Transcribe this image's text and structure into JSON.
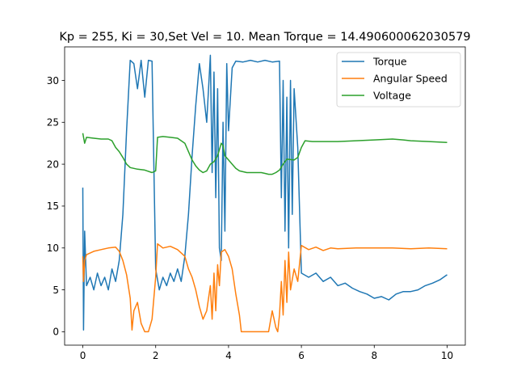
{
  "chart_data": {
    "type": "line",
    "title": "Kp = 255, Ki = 30,Set Vel = 10. Mean Torque = 14.490600062030579",
    "xlabel": "",
    "ylabel": "",
    "xlim": [
      -0.5,
      10.5
    ],
    "ylim": [
      -1.6,
      34.0
    ],
    "xticks": [
      0,
      2,
      4,
      6,
      8,
      10
    ],
    "yticks": [
      0,
      5,
      10,
      15,
      20,
      25,
      30
    ],
    "grid": false,
    "legend_position": "top-right",
    "series": [
      {
        "name": "Torque",
        "color": "#1f77b4",
        "points": [
          [
            0,
            17.2
          ],
          [
            0.02,
            0.2
          ],
          [
            0.05,
            12
          ],
          [
            0.1,
            5.5
          ],
          [
            0.2,
            6.5
          ],
          [
            0.3,
            5.0
          ],
          [
            0.4,
            7.0
          ],
          [
            0.5,
            5.5
          ],
          [
            0.6,
            6.5
          ],
          [
            0.7,
            5.0
          ],
          [
            0.8,
            7.5
          ],
          [
            0.9,
            6.0
          ],
          [
            1.0,
            8.5
          ],
          [
            1.1,
            14.0
          ],
          [
            1.2,
            24.0
          ],
          [
            1.3,
            32.4
          ],
          [
            1.4,
            32.0
          ],
          [
            1.5,
            29.0
          ],
          [
            1.6,
            32.4
          ],
          [
            1.7,
            28.0
          ],
          [
            1.8,
            32.4
          ],
          [
            1.9,
            32.3
          ],
          [
            2.0,
            7.5
          ],
          [
            2.1,
            5.0
          ],
          [
            2.2,
            6.5
          ],
          [
            2.3,
            5.5
          ],
          [
            2.4,
            7.0
          ],
          [
            2.5,
            6.0
          ],
          [
            2.6,
            7.5
          ],
          [
            2.7,
            6.0
          ],
          [
            2.8,
            9.0
          ],
          [
            2.9,
            14.0
          ],
          [
            3.0,
            21.0
          ],
          [
            3.1,
            27.0
          ],
          [
            3.2,
            32.0
          ],
          [
            3.3,
            29.0
          ],
          [
            3.4,
            25.0
          ],
          [
            3.5,
            33.0
          ],
          [
            3.55,
            19.0
          ],
          [
            3.6,
            31.0
          ],
          [
            3.65,
            16.0
          ],
          [
            3.7,
            29.0
          ],
          [
            3.75,
            10.0
          ],
          [
            3.8,
            8.5
          ],
          [
            3.85,
            25.0
          ],
          [
            3.9,
            12.0
          ],
          [
            3.95,
            32.0
          ],
          [
            4.0,
            24.0
          ],
          [
            4.1,
            31.5
          ],
          [
            4.2,
            32.3
          ],
          [
            4.4,
            32.2
          ],
          [
            4.6,
            32.4
          ],
          [
            4.8,
            32.2
          ],
          [
            5.0,
            32.4
          ],
          [
            5.2,
            32.2
          ],
          [
            5.4,
            32.3
          ],
          [
            5.45,
            16.0
          ],
          [
            5.5,
            30.0
          ],
          [
            5.55,
            12.0
          ],
          [
            5.6,
            28.0
          ],
          [
            5.65,
            10.0
          ],
          [
            5.7,
            30.0
          ],
          [
            5.75,
            14.0
          ],
          [
            5.8,
            29.0
          ],
          [
            5.9,
            22.0
          ],
          [
            6.0,
            7.0
          ],
          [
            6.2,
            6.5
          ],
          [
            6.4,
            7.0
          ],
          [
            6.6,
            6.0
          ],
          [
            6.8,
            6.5
          ],
          [
            7.0,
            5.5
          ],
          [
            7.2,
            5.8
          ],
          [
            7.4,
            5.2
          ],
          [
            7.6,
            4.8
          ],
          [
            7.8,
            4.5
          ],
          [
            8.0,
            4.0
          ],
          [
            8.2,
            4.2
          ],
          [
            8.4,
            3.8
          ],
          [
            8.6,
            4.5
          ],
          [
            8.8,
            4.8
          ],
          [
            9.0,
            4.8
          ],
          [
            9.2,
            5.0
          ],
          [
            9.4,
            5.5
          ],
          [
            9.6,
            5.8
          ],
          [
            9.8,
            6.2
          ],
          [
            10.0,
            6.8
          ]
        ]
      },
      {
        "name": "Angular Speed",
        "color": "#ff7f0e",
        "points": [
          [
            0,
            9.0
          ],
          [
            0.02,
            6.0
          ],
          [
            0.05,
            8.5
          ],
          [
            0.1,
            9.2
          ],
          [
            0.3,
            9.6
          ],
          [
            0.5,
            9.8
          ],
          [
            0.7,
            10.0
          ],
          [
            0.9,
            10.1
          ],
          [
            1.0,
            9.6
          ],
          [
            1.1,
            8.5
          ],
          [
            1.2,
            6.8
          ],
          [
            1.3,
            4.0
          ],
          [
            1.35,
            0.2
          ],
          [
            1.4,
            2.5
          ],
          [
            1.5,
            3.5
          ],
          [
            1.6,
            1.0
          ],
          [
            1.7,
            0.0
          ],
          [
            1.8,
            0.0
          ],
          [
            1.9,
            1.5
          ],
          [
            2.0,
            6.5
          ],
          [
            2.05,
            10.5
          ],
          [
            2.2,
            10.0
          ],
          [
            2.4,
            10.2
          ],
          [
            2.6,
            9.8
          ],
          [
            2.8,
            9.0
          ],
          [
            2.9,
            7.5
          ],
          [
            3.0,
            6.5
          ],
          [
            3.1,
            5.0
          ],
          [
            3.2,
            3.0
          ],
          [
            3.3,
            1.5
          ],
          [
            3.4,
            2.5
          ],
          [
            3.5,
            5.5
          ],
          [
            3.55,
            1.5
          ],
          [
            3.6,
            7.0
          ],
          [
            3.65,
            2.5
          ],
          [
            3.7,
            8.0
          ],
          [
            3.75,
            5.5
          ],
          [
            3.8,
            9.5
          ],
          [
            3.9,
            9.8
          ],
          [
            4.0,
            9.0
          ],
          [
            4.1,
            7.5
          ],
          [
            4.2,
            4.5
          ],
          [
            4.3,
            2.0
          ],
          [
            4.35,
            0.0
          ],
          [
            4.5,
            0.0
          ],
          [
            4.7,
            0.0
          ],
          [
            4.9,
            0.0
          ],
          [
            5.1,
            0.0
          ],
          [
            5.2,
            2.5
          ],
          [
            5.3,
            0.5
          ],
          [
            5.35,
            0.0
          ],
          [
            5.4,
            2.0
          ],
          [
            5.45,
            6.0
          ],
          [
            5.5,
            2.0
          ],
          [
            5.55,
            8.5
          ],
          [
            5.6,
            3.5
          ],
          [
            5.65,
            9.5
          ],
          [
            5.7,
            5.0
          ],
          [
            5.8,
            7.5
          ],
          [
            5.9,
            6.0
          ],
          [
            6.0,
            10.3
          ],
          [
            6.2,
            9.8
          ],
          [
            6.4,
            10.1
          ],
          [
            6.6,
            9.7
          ],
          [
            6.8,
            10.0
          ],
          [
            7.0,
            9.9
          ],
          [
            7.5,
            10.0
          ],
          [
            8.0,
            10.0
          ],
          [
            8.5,
            10.0
          ],
          [
            9.0,
            9.9
          ],
          [
            9.5,
            10.0
          ],
          [
            10.0,
            9.9
          ]
        ]
      },
      {
        "name": "Voltage",
        "color": "#2ca02c",
        "points": [
          [
            0,
            23.7
          ],
          [
            0.05,
            22.5
          ],
          [
            0.1,
            23.2
          ],
          [
            0.3,
            23.1
          ],
          [
            0.5,
            23.0
          ],
          [
            0.7,
            23.0
          ],
          [
            0.8,
            22.8
          ],
          [
            0.9,
            22.0
          ],
          [
            1.0,
            21.5
          ],
          [
            1.1,
            20.8
          ],
          [
            1.2,
            20.0
          ],
          [
            1.3,
            19.6
          ],
          [
            1.5,
            19.4
          ],
          [
            1.7,
            19.3
          ],
          [
            1.9,
            19.0
          ],
          [
            2.0,
            19.2
          ],
          [
            2.05,
            23.2
          ],
          [
            2.2,
            23.3
          ],
          [
            2.4,
            23.2
          ],
          [
            2.6,
            23.1
          ],
          [
            2.8,
            22.5
          ],
          [
            2.9,
            21.5
          ],
          [
            3.0,
            20.5
          ],
          [
            3.1,
            19.8
          ],
          [
            3.2,
            19.3
          ],
          [
            3.3,
            19.0
          ],
          [
            3.4,
            19.2
          ],
          [
            3.5,
            20.0
          ],
          [
            3.6,
            20.3
          ],
          [
            3.7,
            21.0
          ],
          [
            3.8,
            22.5
          ],
          [
            3.85,
            22.2
          ],
          [
            3.9,
            21.0
          ],
          [
            4.0,
            20.5
          ],
          [
            4.1,
            20.0
          ],
          [
            4.2,
            19.5
          ],
          [
            4.3,
            19.2
          ],
          [
            4.5,
            19.0
          ],
          [
            4.7,
            19.0
          ],
          [
            4.9,
            19.0
          ],
          [
            5.0,
            18.9
          ],
          [
            5.1,
            18.8
          ],
          [
            5.2,
            18.8
          ],
          [
            5.3,
            19.0
          ],
          [
            5.4,
            19.3
          ],
          [
            5.5,
            20.0
          ],
          [
            5.6,
            20.6
          ],
          [
            5.8,
            20.5
          ],
          [
            5.9,
            20.8
          ],
          [
            6.0,
            22.0
          ],
          [
            6.1,
            22.8
          ],
          [
            6.3,
            22.7
          ],
          [
            6.5,
            22.7
          ],
          [
            7.0,
            22.7
          ],
          [
            7.5,
            22.8
          ],
          [
            8.0,
            22.9
          ],
          [
            8.5,
            23.0
          ],
          [
            8.8,
            22.9
          ],
          [
            9.0,
            22.8
          ],
          [
            9.5,
            22.7
          ],
          [
            10.0,
            22.6
          ]
        ]
      }
    ]
  }
}
